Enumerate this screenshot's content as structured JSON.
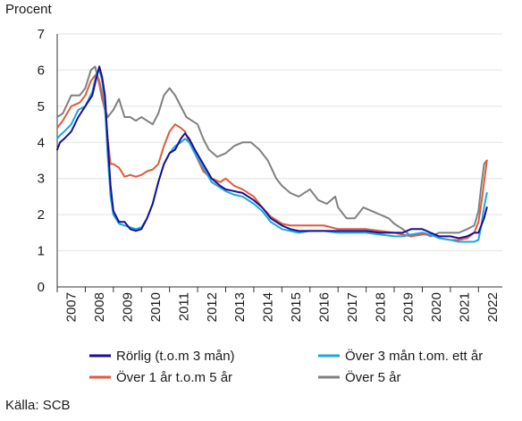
{
  "chart_data": {
    "type": "line",
    "ylabel": "Procent",
    "xlabel": "",
    "source": "Källa: SCB",
    "ylim": [
      0,
      7
    ],
    "xlim": [
      2007,
      2022.85
    ],
    "yticks": [
      0,
      1,
      2,
      3,
      4,
      5,
      6,
      7
    ],
    "xticks": [
      "2007",
      "2008",
      "2009",
      "2010",
      "2011",
      "2012",
      "2013",
      "2014",
      "2015",
      "2016",
      "2017",
      "2018",
      "2019",
      "2020",
      "2021",
      "2022"
    ],
    "grid": "horizontal",
    "legend_position": "bottom",
    "series": [
      {
        "name": "Rörlig (t.o.m 3 mån)",
        "color": "#1a0f96",
        "x": [
          2007.0,
          2007.1,
          2007.25,
          2007.5,
          2007.75,
          2008.0,
          2008.25,
          2008.4,
          2008.5,
          2008.6,
          2008.7,
          2008.8,
          2008.9,
          2009.0,
          2009.2,
          2009.4,
          2009.6,
          2009.8,
          2010.0,
          2010.2,
          2010.4,
          2010.6,
          2010.8,
          2011.0,
          2011.2,
          2011.4,
          2011.55,
          2011.7,
          2011.9,
          2012.2,
          2012.5,
          2012.8,
          2013.0,
          2013.3,
          2013.6,
          2014.0,
          2014.3,
          2014.6,
          2015.0,
          2015.3,
          2015.6,
          2016.0,
          2016.5,
          2017.0,
          2017.5,
          2018.0,
          2018.5,
          2019.0,
          2019.3,
          2019.6,
          2020.0,
          2020.3,
          2020.6,
          2021.0,
          2021.3,
          2021.6,
          2021.85,
          2022.0,
          2022.1,
          2022.2,
          2022.3
        ],
        "values": [
          3.8,
          4.0,
          4.1,
          4.3,
          4.7,
          5.0,
          5.3,
          5.8,
          6.1,
          5.8,
          5.3,
          4.0,
          2.8,
          2.1,
          1.8,
          1.8,
          1.6,
          1.55,
          1.6,
          1.9,
          2.3,
          2.9,
          3.4,
          3.7,
          3.8,
          4.1,
          4.25,
          4.1,
          3.8,
          3.4,
          3.0,
          2.8,
          2.7,
          2.65,
          2.6,
          2.4,
          2.2,
          1.9,
          1.7,
          1.6,
          1.55,
          1.55,
          1.55,
          1.55,
          1.55,
          1.55,
          1.5,
          1.5,
          1.5,
          1.6,
          1.6,
          1.5,
          1.4,
          1.4,
          1.35,
          1.4,
          1.5,
          1.5,
          1.7,
          1.9,
          2.2
        ]
      },
      {
        "name": "Över 3 mån t.om. ett år",
        "color": "#1ba7e0",
        "x": [
          2007.0,
          2007.1,
          2007.25,
          2007.5,
          2007.75,
          2008.0,
          2008.25,
          2008.4,
          2008.5,
          2008.6,
          2008.7,
          2008.8,
          2008.9,
          2009.0,
          2009.2,
          2009.4,
          2009.6,
          2009.8,
          2010.0,
          2010.2,
          2010.4,
          2010.6,
          2010.8,
          2011.0,
          2011.2,
          2011.4,
          2011.55,
          2011.7,
          2011.9,
          2012.2,
          2012.5,
          2012.8,
          2013.0,
          2013.3,
          2013.6,
          2014.0,
          2014.3,
          2014.6,
          2015.0,
          2015.3,
          2015.6,
          2016.0,
          2016.5,
          2017.0,
          2017.5,
          2018.0,
          2018.5,
          2019.0,
          2019.3,
          2019.6,
          2020.0,
          2020.3,
          2020.6,
          2021.0,
          2021.3,
          2021.6,
          2021.85,
          2022.0,
          2022.1,
          2022.2,
          2022.3
        ],
        "values": [
          4.1,
          4.2,
          4.3,
          4.5,
          4.9,
          5.0,
          5.4,
          5.9,
          6.0,
          5.7,
          5.0,
          3.6,
          2.5,
          2.0,
          1.75,
          1.7,
          1.65,
          1.6,
          1.65,
          1.9,
          2.3,
          2.9,
          3.4,
          3.7,
          3.9,
          4.0,
          4.1,
          4.0,
          3.7,
          3.3,
          2.9,
          2.75,
          2.65,
          2.55,
          2.5,
          2.3,
          2.1,
          1.8,
          1.6,
          1.55,
          1.5,
          1.55,
          1.55,
          1.5,
          1.5,
          1.5,
          1.45,
          1.4,
          1.4,
          1.45,
          1.5,
          1.45,
          1.35,
          1.3,
          1.25,
          1.25,
          1.25,
          1.3,
          1.7,
          2.2,
          2.6
        ]
      },
      {
        "name": "Över 1 år t.o.m 5 år",
        "color": "#e05a3c",
        "x": [
          2007.0,
          2007.2,
          2007.5,
          2007.8,
          2008.0,
          2008.2,
          2008.4,
          2008.5,
          2008.6,
          2008.7,
          2008.8,
          2008.9,
          2009.0,
          2009.2,
          2009.4,
          2009.6,
          2009.8,
          2010.0,
          2010.2,
          2010.4,
          2010.6,
          2010.8,
          2011.0,
          2011.2,
          2011.4,
          2011.55,
          2011.7,
          2011.9,
          2012.2,
          2012.5,
          2012.8,
          2013.0,
          2013.3,
          2013.6,
          2014.0,
          2014.3,
          2014.6,
          2015.0,
          2015.3,
          2015.6,
          2016.0,
          2016.5,
          2017.0,
          2017.5,
          2018.0,
          2018.5,
          2019.0,
          2019.3,
          2019.6,
          2020.0,
          2020.3,
          2020.6,
          2021.0,
          2021.3,
          2021.6,
          2021.85,
          2022.0,
          2022.1,
          2022.2,
          2022.3
        ],
        "values": [
          4.4,
          4.6,
          5.0,
          5.1,
          5.3,
          5.7,
          5.9,
          5.7,
          5.3,
          4.9,
          4.1,
          3.4,
          3.4,
          3.3,
          3.05,
          3.1,
          3.05,
          3.1,
          3.2,
          3.25,
          3.4,
          3.9,
          4.3,
          4.5,
          4.4,
          4.3,
          4.0,
          3.7,
          3.2,
          3.0,
          2.9,
          3.0,
          2.8,
          2.7,
          2.5,
          2.2,
          1.95,
          1.75,
          1.7,
          1.7,
          1.7,
          1.7,
          1.6,
          1.6,
          1.6,
          1.55,
          1.5,
          1.45,
          1.4,
          1.45,
          1.45,
          1.35,
          1.3,
          1.3,
          1.35,
          1.5,
          1.8,
          2.3,
          2.9,
          3.5
        ]
      },
      {
        "name": "Över 5 år",
        "color": "#808080",
        "x": [
          2007.0,
          2007.2,
          2007.5,
          2007.8,
          2008.0,
          2008.2,
          2008.35,
          2008.5,
          2008.6,
          2008.7,
          2008.8,
          2008.9,
          2009.0,
          2009.2,
          2009.4,
          2009.6,
          2009.8,
          2010.0,
          2010.2,
          2010.4,
          2010.6,
          2010.8,
          2011.0,
          2011.2,
          2011.4,
          2011.6,
          2011.8,
          2012.0,
          2012.2,
          2012.4,
          2012.7,
          2013.0,
          2013.3,
          2013.6,
          2013.9,
          2014.2,
          2014.5,
          2014.8,
          2015.0,
          2015.3,
          2015.6,
          2016.0,
          2016.3,
          2016.6,
          2016.9,
          2017.0,
          2017.3,
          2017.6,
          2017.9,
          2018.2,
          2018.5,
          2018.8,
          2019.0,
          2019.3,
          2019.6,
          2020.0,
          2020.3,
          2020.6,
          2021.0,
          2021.3,
          2021.6,
          2021.85,
          2022.0,
          2022.1,
          2022.2,
          2022.3
        ],
        "values": [
          4.7,
          4.8,
          5.3,
          5.3,
          5.5,
          6.0,
          6.1,
          5.6,
          5.2,
          4.9,
          4.7,
          4.8,
          4.9,
          5.2,
          4.7,
          4.7,
          4.6,
          4.7,
          4.6,
          4.5,
          4.8,
          5.3,
          5.5,
          5.3,
          5.0,
          4.7,
          4.6,
          4.5,
          4.1,
          3.8,
          3.6,
          3.7,
          3.9,
          4.0,
          4.0,
          3.8,
          3.5,
          3.0,
          2.8,
          2.6,
          2.5,
          2.7,
          2.4,
          2.3,
          2.5,
          2.2,
          1.9,
          1.9,
          2.2,
          2.1,
          2.0,
          1.9,
          1.75,
          1.6,
          1.4,
          1.5,
          1.4,
          1.5,
          1.5,
          1.5,
          1.6,
          1.7,
          2.1,
          2.8,
          3.4,
          3.5
        ]
      }
    ]
  }
}
